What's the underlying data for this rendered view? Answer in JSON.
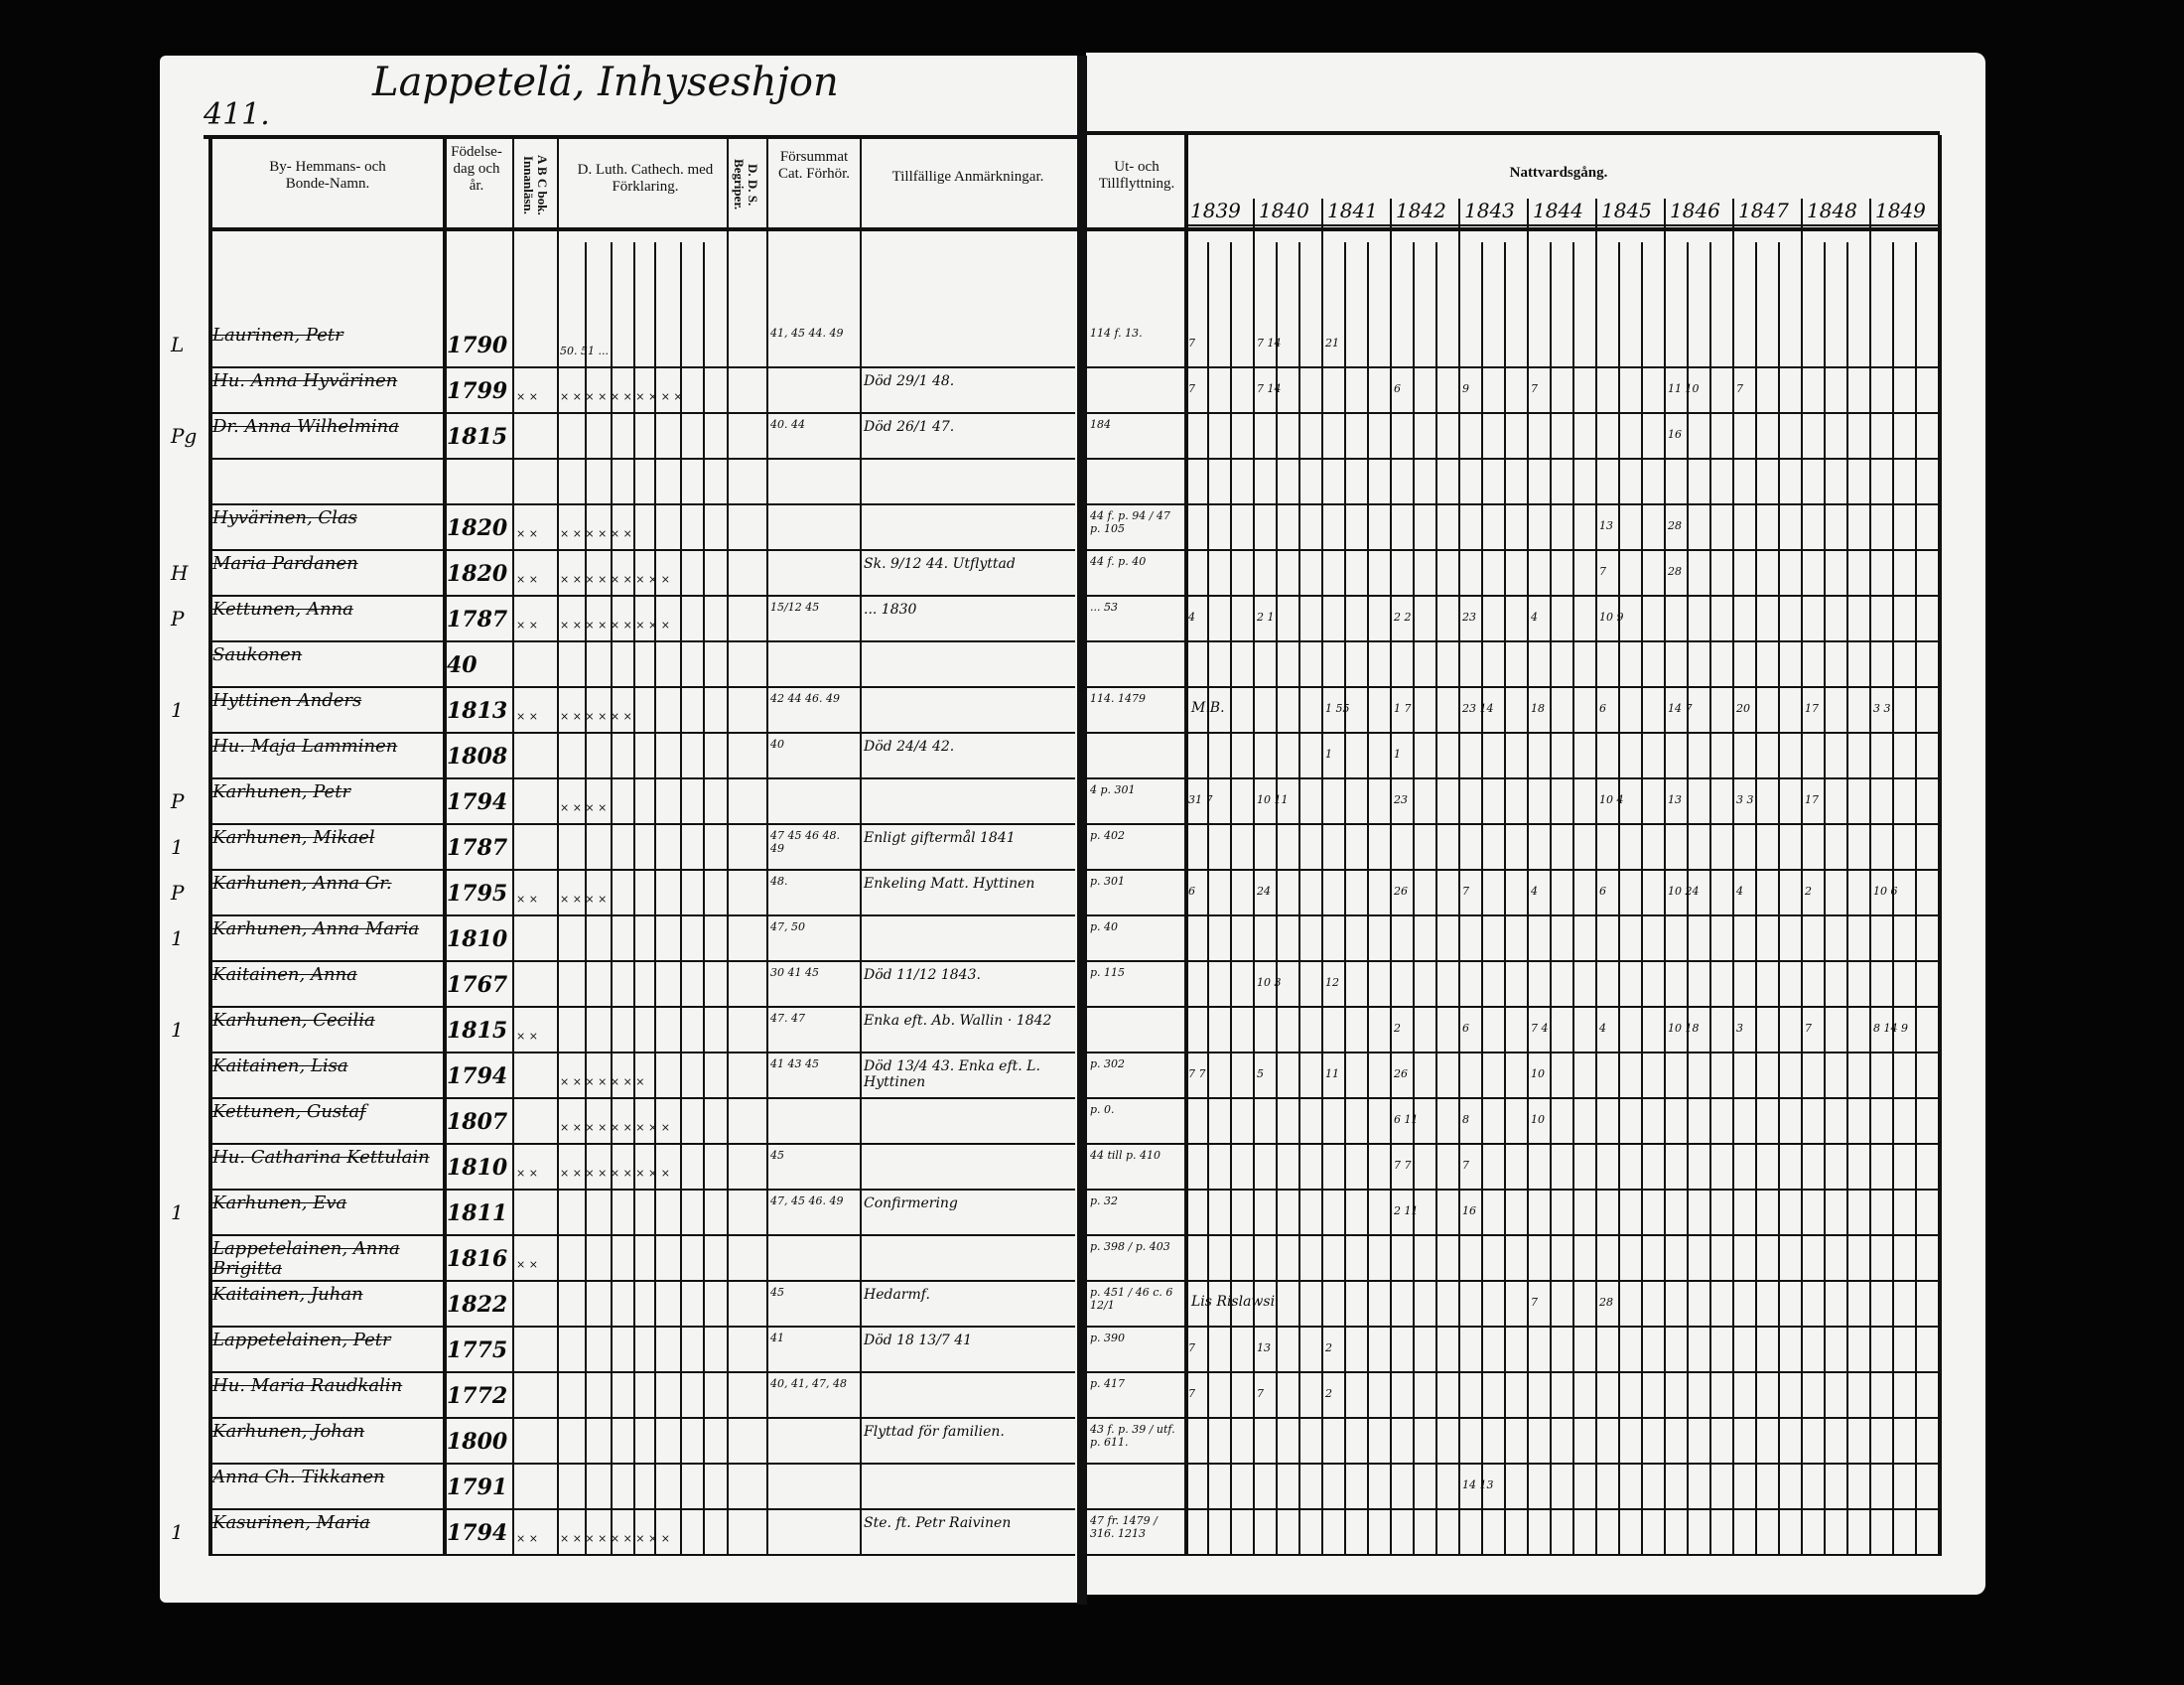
{
  "page_number": "411.",
  "title": "Lappetelä, Inhyseshjon",
  "headers": {
    "name": "By- Hemmans- och Bonde-Namn.",
    "birth": "Födelse-dag och år.",
    "abc": "A B C bok. Innanläsn.",
    "luther": "D. Luth. Cathech. med Förklaring.",
    "dds": "D. D. S. Begriper.",
    "forsummat": "Försummat Cat. Förhör.",
    "remarks": "Tillfällige Anmärkningar.",
    "moves": "Ut- och Tillflyttning.",
    "communion": "Nattvardsgång."
  },
  "years": [
    "1839",
    "1840",
    "1841",
    "1842",
    "1843",
    "1844",
    "1845",
    "1846",
    "1847",
    "1848",
    "1849"
  ],
  "rows": [
    {
      "mark": "L",
      "name": "Laurinen, Petr",
      "birth": "1790",
      "abc": "",
      "luther": "50. 51 ...",
      "missed": "41, 45 44. 49",
      "remark": "",
      "move": "114 f. 13.",
      "comm": {
        "1839": "7",
        "1840": "7 14",
        "1841": "21"
      }
    },
    {
      "mark": "",
      "name": "Hu. Anna Hyvärinen",
      "birth": "1799",
      "abc": "× ×",
      "luther": "× × × × × × × × × ×",
      "missed": "",
      "remark": "Död 29/1 48.",
      "move": "",
      "comm": {
        "1839": "7",
        "1840": "7 14",
        "1842": "6",
        "1843": "9",
        "1844": "7",
        "1846": "11 10",
        "1847": "7"
      }
    },
    {
      "mark": "Pg",
      "name": "Dr. Anna Wilhelmina",
      "birth": "1815",
      "abc": "",
      "luther": "",
      "missed": "40. 44",
      "remark": "Död 26/1 47.",
      "move": "184",
      "comm": {
        "1846": "16"
      }
    },
    {
      "mark": "",
      "name": "",
      "birth": "",
      "abc": "",
      "luther": "",
      "missed": "",
      "remark": "",
      "move": "",
      "comm": {}
    },
    {
      "mark": "",
      "name": "Hyvärinen, Clas",
      "birth": "1820",
      "abc": "× ×",
      "luther": "× × × × × ×",
      "missed": "",
      "remark": "",
      "move": "44 f. p. 94 / 47 p. 105",
      "comm": {
        "1845": "13",
        "1846": "28"
      }
    },
    {
      "mark": "H",
      "name": "Maria Pardanen",
      "birth": "1820",
      "abc": "× ×",
      "luther": "× × × × × × × × ×",
      "missed": "",
      "remark": "Sk. 9/12 44. Utflyttad",
      "move": "44 f. p. 40",
      "comm": {
        "1845": "7",
        "1846": "28"
      }
    },
    {
      "mark": "P",
      "name": "Kettunen, Anna",
      "birth": "1787",
      "abc": "× ×",
      "luther": "× × × × × × × × ×",
      "missed": "15/12 45",
      "remark": "... 1830",
      "move": "... 53",
      "comm": {
        "1839": "4",
        "1840": "2 1",
        "1842": "2 2",
        "1843": "23",
        "1844": "4",
        "1845": "10 9"
      }
    },
    {
      "mark": "",
      "name": "Saukonen",
      "birth": "40",
      "abc": "",
      "luther": "",
      "missed": "",
      "remark": "",
      "move": "",
      "comm": {}
    },
    {
      "mark": "1",
      "name": "Hyttinen Anders",
      "birth": "1813",
      "abc": "× ×",
      "luther": "× × × × × ×",
      "missed": "42 44 46. 49",
      "remark": "",
      "move": "114. 1479",
      "note": "M.B.",
      "comm": {
        "1841": "1 55",
        "1842": "1 7",
        "1843": "23 14",
        "1844": "18",
        "1845": "6",
        "1846": "14 7",
        "1847": "20",
        "1848": "17",
        "1849": "3 3"
      }
    },
    {
      "mark": "",
      "name": "Hu. Maja Lamminen",
      "birth": "1808",
      "abc": "",
      "luther": "",
      "missed": "40",
      "remark": "Död 24/4 42.",
      "move": "",
      "comm": {
        "1841": "1",
        "1842": "1"
      }
    },
    {
      "mark": "P",
      "name": "Karhunen, Petr",
      "birth": "1794",
      "abc": "",
      "luther": "× × × ×",
      "missed": "",
      "remark": "",
      "move": "4 p. 301",
      "comm": {
        "1839": "31 7",
        "1840": "10 11",
        "1842": "23",
        "1845": "10 4",
        "1846": "13",
        "1847": "3 3",
        "1848": "17"
      }
    },
    {
      "mark": "1",
      "name": "Karhunen, Mikael",
      "birth": "1787",
      "abc": "",
      "luther": "",
      "missed": "47 45 46 48. 49",
      "remark": "Enligt giftermål 1841",
      "move": "p. 402",
      "comm": {}
    },
    {
      "mark": "P",
      "name": "Karhunen, Anna Gr.",
      "birth": "1795",
      "abc": "× ×",
      "luther": "× × × ×",
      "missed": "48.",
      "remark": "Enkeling Matt. Hyttinen",
      "move": "p. 301",
      "comm": {
        "1839": "6",
        "1840": "24",
        "1842": "26",
        "1843": "7",
        "1844": "4",
        "1845": "6",
        "1846": "10 24",
        "1847": "4",
        "1848": "2",
        "1849": "10 6"
      }
    },
    {
      "mark": "1",
      "name": "Karhunen, Anna Maria",
      "birth": "1810",
      "abc": "",
      "luther": "",
      "missed": "47, 50",
      "remark": "",
      "move": "p. 40",
      "comm": {}
    },
    {
      "mark": "",
      "name": "Kaitainen, Anna",
      "birth": "1767",
      "abc": "",
      "luther": "",
      "missed": "30 41 45",
      "remark": "Död 11/12 1843.",
      "move": "p. 115",
      "comm": {
        "1840": "10 3",
        "1841": "12"
      }
    },
    {
      "mark": "1",
      "name": "Karhunen, Cecilia",
      "birth": "1815",
      "abc": "× ×",
      "luther": "",
      "missed": "47. 47",
      "remark": "Enka eft. Ab. Wallin · 1842",
      "move": "",
      "comm": {
        "1842": "2",
        "1843": "6",
        "1844": "7 4",
        "1845": "4",
        "1846": "10 18",
        "1847": "3",
        "1848": "7",
        "1849": "8 14 9"
      }
    },
    {
      "mark": "",
      "name": "Kaitainen, Lisa",
      "birth": "1794",
      "abc": "",
      "luther": "× × × × × × ×",
      "missed": "41 43 45",
      "remark": "Död 13/4 43. Enka eft. L. Hyttinen",
      "move": "p. 302",
      "comm": {
        "1839": "7 7",
        "1840": "5",
        "1841": "11",
        "1842": "26",
        "1844": "10"
      }
    },
    {
      "mark": "",
      "name": "Kettunen, Gustaf",
      "birth": "1807",
      "abc": "",
      "luther": "× × × × × × × × ×",
      "missed": "",
      "remark": "",
      "move": "p. 0.",
      "comm": {
        "1842": "6 11",
        "1843": "8",
        "1844": "10"
      }
    },
    {
      "mark": "",
      "name": "Hu. Catharina Kettulain",
      "birth": "1810",
      "abc": "× ×",
      "luther": "× × × × × × × × ×",
      "missed": "45",
      "remark": "",
      "move": "44 till p. 410",
      "comm": {
        "1842": "7 7",
        "1843": "7"
      }
    },
    {
      "mark": "1",
      "name": "Karhunen, Eva",
      "birth": "1811",
      "abc": "",
      "luther": "",
      "missed": "47, 45 46. 49",
      "remark": "Confirmering",
      "move": "p. 32",
      "comm": {
        "1842": "2 11",
        "1843": "16"
      }
    },
    {
      "mark": "",
      "name": "Lappetelainen, Anna Brigitta",
      "birth": "1816",
      "abc": "× ×",
      "luther": "",
      "missed": "",
      "remark": "",
      "move": "p. 398 / p. 403",
      "comm": {}
    },
    {
      "mark": "",
      "name": "Kaitainen, Juhan",
      "birth": "1822",
      "abc": "",
      "luther": "",
      "missed": "45",
      "remark": "Hedarmf.",
      "move": "p. 451 / 46 c. 6 12/1",
      "note": "Lis Rislawsi",
      "comm": {
        "1844": "7",
        "1845": "28"
      }
    },
    {
      "mark": "",
      "name": "Lappetelainen, Petr",
      "birth": "1775",
      "abc": "",
      "luther": "",
      "missed": "41",
      "remark": "Död 18 13/7 41",
      "move": "p. 390",
      "comm": {
        "1839": "7",
        "1840": "13",
        "1841": "2"
      }
    },
    {
      "mark": "",
      "name": "Hu. Maria Raudkalin",
      "birth": "1772",
      "abc": "",
      "luther": "",
      "missed": "40, 41, 47, 48",
      "remark": "",
      "move": "p. 417",
      "comm": {
        "1839": "7",
        "1840": "7",
        "1841": "2"
      }
    },
    {
      "mark": "",
      "name": "Karhunen, Johan",
      "birth": "1800",
      "abc": "",
      "luther": "",
      "missed": "",
      "remark": "Flyttad för familien.",
      "move": "43 f. p. 39 / utf. p. 611.",
      "comm": {}
    },
    {
      "mark": "",
      "name": "Anna Ch. Tikkanen",
      "birth": "1791",
      "abc": "",
      "luther": "",
      "missed": "",
      "remark": "",
      "move": "",
      "comm": {
        "1843": "14 13"
      }
    },
    {
      "mark": "1",
      "name": "Kasurinen, Maria",
      "birth": "1794",
      "abc": "× ×",
      "luther": "× × × × × × × × ×",
      "missed": "",
      "remark": "Ste. ft. Petr Raivinen",
      "move": "47 fr. 1479 / 316. 1213",
      "comm": {}
    }
  ],
  "colors": {
    "paper": "#f4f4f2",
    "ink": "#111111",
    "background": "#050505"
  }
}
